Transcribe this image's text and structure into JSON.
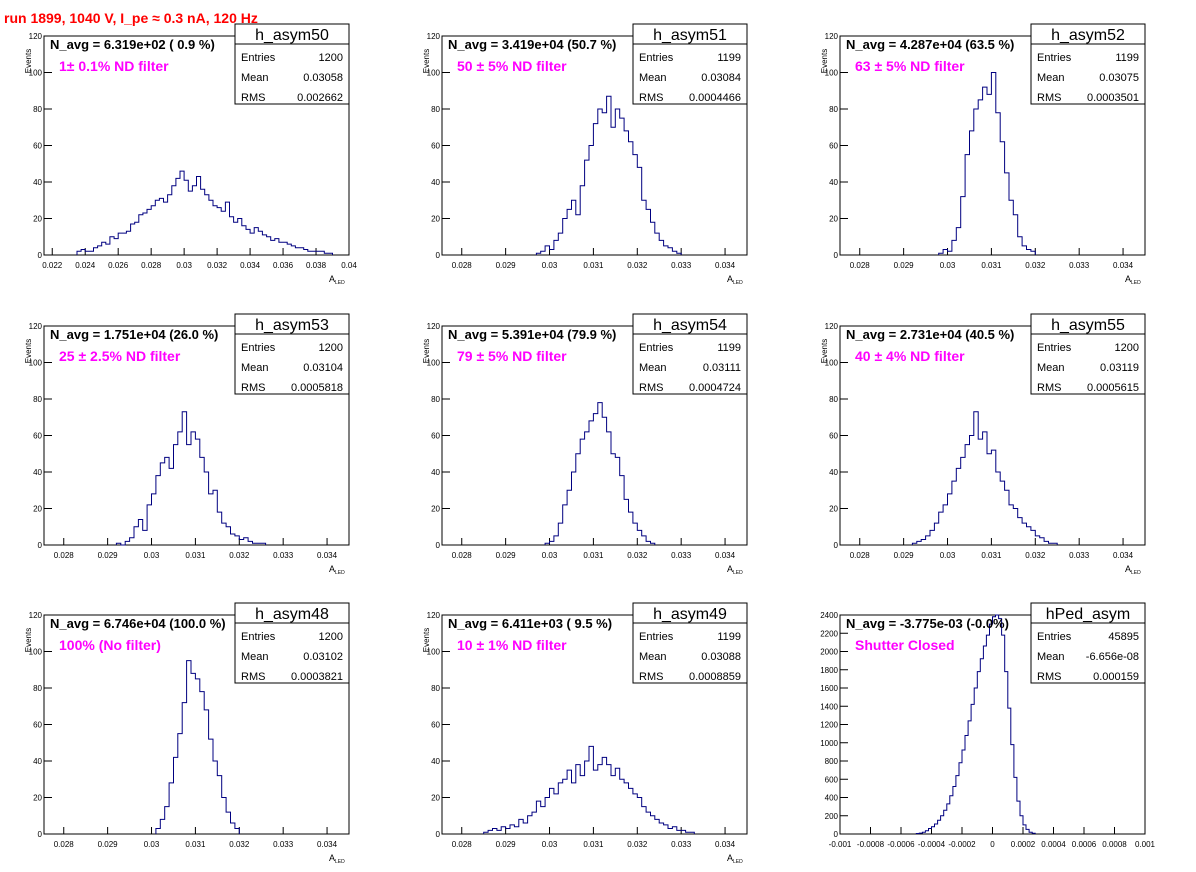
{
  "page_title": "run 1899,  1040 V, I_pe ≈ 0.3 nA, 120 Hz",
  "colors": {
    "title": "#ff0000",
    "note": "#ff00ff",
    "histogram": "#000080",
    "axis": "#000000"
  },
  "chart_data": [
    {
      "type": "histogram",
      "name": "h_asym50",
      "avg_label": "N_avg = 6.319e+02 ( 0.9 %)",
      "note": "1± 0.1% ND filter",
      "stats": [
        [
          "Entries",
          "1200"
        ],
        [
          "Mean",
          "0.03058"
        ],
        [
          "RMS",
          "0.002662"
        ]
      ],
      "xlabel": "A_LED",
      "ylabel": "Events",
      "xlim": [
        0.0215,
        0.04
      ],
      "ylim": [
        0,
        120
      ],
      "xticks": [
        0.022,
        0.024,
        0.026,
        0.028,
        0.03,
        0.032,
        0.034,
        0.036,
        0.038,
        0.04
      ],
      "xticklabels": [
        "0.022",
        "0.024",
        "0.026",
        "0.028",
        "0.03",
        "0.032",
        "0.034",
        "0.036",
        "0.038",
        "0.04"
      ],
      "yticks": [
        0,
        20,
        40,
        60,
        80,
        100,
        120
      ],
      "yticklabels": [
        "0",
        "20",
        "40",
        "60",
        "80",
        "100",
        "120"
      ],
      "x_start": 0.0235,
      "bin_width": 0.00025,
      "counts": [
        2,
        3,
        2,
        2,
        4,
        5,
        7,
        6,
        10,
        9,
        12,
        12,
        13,
        17,
        18,
        22,
        23,
        25,
        27,
        30,
        31,
        29,
        33,
        38,
        42,
        46,
        41,
        35,
        38,
        43,
        36,
        33,
        30,
        27,
        26,
        24,
        29,
        21,
        18,
        20,
        16,
        14,
        12,
        15,
        13,
        11,
        10,
        8,
        9,
        7,
        7,
        6,
        5,
        4,
        4,
        3,
        2,
        2,
        2,
        2,
        1,
        1
      ]
    },
    {
      "type": "histogram",
      "name": "h_asym51",
      "avg_label": "N_avg = 3.419e+04 (50.7 %)",
      "note": "50 ± 5% ND filter",
      "stats": [
        [
          "Entries",
          "1199"
        ],
        [
          "Mean",
          "0.03084"
        ],
        [
          "RMS",
          "0.0004466"
        ]
      ],
      "xlabel": "A_LED",
      "ylabel": "Events",
      "xlim": [
        0.02755,
        0.0345
      ],
      "ylim": [
        0,
        120
      ],
      "xticks": [
        0.028,
        0.029,
        0.03,
        0.031,
        0.032,
        0.033,
        0.034
      ],
      "xticklabels": [
        "0.028",
        "0.029",
        "0.03",
        "0.031",
        "0.032",
        "0.033",
        "0.034"
      ],
      "yticks": [
        0,
        20,
        40,
        60,
        80,
        100,
        120
      ],
      "yticklabels": [
        "0",
        "20",
        "40",
        "60",
        "80",
        "100",
        "120"
      ],
      "x_start": 0.0297,
      "bin_width": 0.0001,
      "counts": [
        1,
        2,
        5,
        3,
        8,
        12,
        20,
        25,
        30,
        22,
        38,
        52,
        60,
        72,
        80,
        78,
        87,
        70,
        80,
        75,
        68,
        62,
        55,
        48,
        30,
        25,
        18,
        12,
        8,
        5,
        4,
        2,
        1
      ]
    },
    {
      "type": "histogram",
      "name": "h_asym52",
      "avg_label": "N_avg = 4.287e+04 (63.5 %)",
      "note": "63 ± 5% ND filter",
      "stats": [
        [
          "Entries",
          "1199"
        ],
        [
          "Mean",
          "0.03075"
        ],
        [
          "RMS",
          "0.0003501"
        ]
      ],
      "xlabel": "A_LED",
      "ylabel": "Events",
      "xlim": [
        0.02755,
        0.0345
      ],
      "ylim": [
        0,
        120
      ],
      "xticks": [
        0.028,
        0.029,
        0.03,
        0.031,
        0.032,
        0.033,
        0.034
      ],
      "xticklabels": [
        "0.028",
        "0.029",
        "0.03",
        "0.031",
        "0.032",
        "0.033",
        "0.034"
      ],
      "yticks": [
        0,
        20,
        40,
        60,
        80,
        100,
        120
      ],
      "yticklabels": [
        "0",
        "20",
        "40",
        "60",
        "80",
        "100",
        "120"
      ],
      "x_start": 0.0298,
      "bin_width": 0.0001,
      "counts": [
        1,
        3,
        2,
        8,
        15,
        32,
        55,
        68,
        80,
        85,
        92,
        88,
        100,
        78,
        62,
        45,
        30,
        22,
        10,
        5,
        3,
        2
      ]
    },
    {
      "type": "histogram",
      "name": "h_asym53",
      "avg_label": "N_avg = 1.751e+04 (26.0 %)",
      "note": "25 ± 2.5% ND filter",
      "stats": [
        [
          "Entries",
          "1200"
        ],
        [
          "Mean",
          "0.03104"
        ],
        [
          "RMS",
          "0.0005818"
        ]
      ],
      "xlabel": "A_LED",
      "ylabel": "Events",
      "xlim": [
        0.02755,
        0.0345
      ],
      "ylim": [
        0,
        120
      ],
      "xticks": [
        0.028,
        0.029,
        0.03,
        0.031,
        0.032,
        0.033,
        0.034
      ],
      "xticklabels": [
        "0.028",
        "0.029",
        "0.03",
        "0.031",
        "0.032",
        "0.033",
        "0.034"
      ],
      "yticks": [
        0,
        20,
        40,
        60,
        80,
        100,
        120
      ],
      "yticklabels": [
        "0",
        "20",
        "40",
        "60",
        "80",
        "100",
        "120"
      ],
      "x_start": 0.0292,
      "bin_width": 0.0001,
      "counts": [
        1,
        0,
        2,
        4,
        10,
        14,
        8,
        22,
        28,
        38,
        45,
        48,
        42,
        55,
        62,
        73,
        55,
        62,
        58,
        48,
        40,
        28,
        30,
        18,
        12,
        10,
        6,
        5,
        3,
        4,
        2,
        1,
        1,
        1
      ]
    },
    {
      "type": "histogram",
      "name": "h_asym54",
      "avg_label": "N_avg = 5.391e+04 (79.9 %)",
      "note": "79 ± 5% ND filter",
      "stats": [
        [
          "Entries",
          "1199"
        ],
        [
          "Mean",
          "0.03111"
        ],
        [
          "RMS",
          "0.0004724"
        ]
      ],
      "xlabel": "A_LED",
      "ylabel": "Events",
      "xlim": [
        0.02755,
        0.0345
      ],
      "ylim": [
        0,
        120
      ],
      "xticks": [
        0.028,
        0.029,
        0.03,
        0.031,
        0.032,
        0.033,
        0.034
      ],
      "xticklabels": [
        "0.028",
        "0.029",
        "0.03",
        "0.031",
        "0.032",
        "0.033",
        "0.034"
      ],
      "yticks": [
        0,
        20,
        40,
        60,
        80,
        100,
        120
      ],
      "yticklabels": [
        "0",
        "20",
        "40",
        "60",
        "80",
        "100",
        "120"
      ],
      "x_start": 0.0299,
      "bin_width": 0.0001,
      "counts": [
        1,
        2,
        5,
        12,
        22,
        30,
        40,
        50,
        58,
        62,
        68,
        72,
        78,
        70,
        62,
        50,
        48,
        38,
        25,
        18,
        12,
        8,
        5,
        2,
        1
      ]
    },
    {
      "type": "histogram",
      "name": "h_asym55",
      "avg_label": "N_avg = 2.731e+04 (40.5 %)",
      "note": "40 ± 4% ND filter",
      "stats": [
        [
          "Entries",
          "1200"
        ],
        [
          "Mean",
          "0.03119"
        ],
        [
          "RMS",
          "0.0005615"
        ]
      ],
      "xlabel": "A_LED",
      "ylabel": "Events",
      "xlim": [
        0.02755,
        0.0345
      ],
      "ylim": [
        0,
        120
      ],
      "xticks": [
        0.028,
        0.029,
        0.03,
        0.031,
        0.032,
        0.033,
        0.034
      ],
      "xticklabels": [
        "0.028",
        "0.029",
        "0.03",
        "0.031",
        "0.032",
        "0.033",
        "0.034"
      ],
      "yticks": [
        0,
        20,
        40,
        60,
        80,
        100,
        120
      ],
      "yticklabels": [
        "0",
        "20",
        "40",
        "60",
        "80",
        "100",
        "120"
      ],
      "x_start": 0.0292,
      "bin_width": 0.0001,
      "counts": [
        1,
        2,
        3,
        5,
        8,
        12,
        18,
        22,
        28,
        35,
        42,
        48,
        55,
        60,
        73,
        58,
        62,
        50,
        52,
        40,
        35,
        30,
        22,
        20,
        15,
        12,
        10,
        8,
        5,
        4,
        2,
        1,
        1
      ]
    },
    {
      "type": "histogram",
      "name": "h_asym48",
      "avg_label": "N_avg = 6.746e+04 (100.0 %)",
      "note": "100% (No filter)",
      "stats": [
        [
          "Entries",
          "1200"
        ],
        [
          "Mean",
          "0.03102"
        ],
        [
          "RMS",
          "0.0003821"
        ]
      ],
      "xlabel": "A_LED",
      "ylabel": "Events",
      "xlim": [
        0.02755,
        0.0345
      ],
      "ylim": [
        0,
        120
      ],
      "xticks": [
        0.028,
        0.029,
        0.03,
        0.031,
        0.032,
        0.033,
        0.034
      ],
      "xticklabels": [
        "0.028",
        "0.029",
        "0.03",
        "0.031",
        "0.032",
        "0.033",
        "0.034"
      ],
      "yticks": [
        0,
        20,
        40,
        60,
        80,
        100,
        120
      ],
      "yticklabels": [
        "0",
        "20",
        "40",
        "60",
        "80",
        "100",
        "120"
      ],
      "x_start": 0.0301,
      "bin_width": 0.0001,
      "counts": [
        3,
        8,
        15,
        28,
        42,
        55,
        72,
        95,
        88,
        85,
        78,
        68,
        52,
        40,
        32,
        20,
        12,
        6,
        3
      ]
    },
    {
      "type": "histogram",
      "name": "h_asym49",
      "avg_label": "N_avg = 6.411e+03 ( 9.5 %)",
      "note": "10 ± 1% ND filter",
      "stats": [
        [
          "Entries",
          "1199"
        ],
        [
          "Mean",
          "0.03088"
        ],
        [
          "RMS",
          "0.0008859"
        ]
      ],
      "xlabel": "A_LED",
      "ylabel": "Events",
      "xlim": [
        0.02755,
        0.0345
      ],
      "ylim": [
        0,
        120
      ],
      "xticks": [
        0.028,
        0.029,
        0.03,
        0.031,
        0.032,
        0.033,
        0.034
      ],
      "xticklabels": [
        "0.028",
        "0.029",
        "0.03",
        "0.031",
        "0.032",
        "0.033",
        "0.034"
      ],
      "yticks": [
        0,
        20,
        40,
        60,
        80,
        100,
        120
      ],
      "yticklabels": [
        "0",
        "20",
        "40",
        "60",
        "80",
        "100",
        "120"
      ],
      "x_start": 0.0285,
      "bin_width": 0.0001,
      "counts": [
        1,
        2,
        3,
        2,
        4,
        3,
        5,
        4,
        8,
        6,
        10,
        12,
        18,
        15,
        20,
        25,
        22,
        28,
        30,
        35,
        28,
        38,
        32,
        40,
        48,
        35,
        38,
        42,
        38,
        32,
        36,
        30,
        28,
        25,
        22,
        20,
        15,
        12,
        10,
        8,
        6,
        5,
        3,
        4,
        2,
        2,
        1,
        1
      ]
    },
    {
      "type": "histogram",
      "name": "hPed_asym",
      "avg_label": "N_avg = -3.775e-03 (-0.0%)",
      "note": "Shutter Closed",
      "stats": [
        [
          "Entries",
          "45895"
        ],
        [
          "Mean",
          "-6.656e-08"
        ],
        [
          "RMS",
          "0.000159"
        ]
      ],
      "xlabel": "",
      "ylabel": "",
      "xlim": [
        -0.001,
        0.001
      ],
      "ylim": [
        0,
        2400
      ],
      "xticks": [
        -0.001,
        -0.0008,
        -0.0006,
        -0.0004,
        -0.0002,
        0,
        0.0002,
        0.0004,
        0.0006,
        0.0008,
        0.001
      ],
      "xticklabels": [
        "-0.001",
        "-0.0008",
        "-0.0006",
        "-0.0004",
        "-0.0002",
        "0",
        "0.0002",
        "0.0004",
        "0.0006",
        "0.0008",
        "0.001"
      ],
      "yticks": [
        0,
        200,
        400,
        600,
        800,
        1000,
        1200,
        1400,
        1600,
        1800,
        2000,
        2200,
        2400
      ],
      "yticklabels": [
        "0",
        "200",
        "400",
        "600",
        "800",
        "1000",
        "1200",
        "1400",
        "1600",
        "1800",
        "2000",
        "2200",
        "2400"
      ],
      "x_start": -0.0005,
      "bin_width": 2e-05,
      "counts": [
        5,
        10,
        20,
        35,
        60,
        80,
        110,
        150,
        200,
        260,
        330,
        420,
        520,
        640,
        780,
        920,
        1080,
        1240,
        1420,
        1600,
        1780,
        1920,
        2060,
        2180,
        2300,
        2380,
        2400,
        2360,
        2180,
        1780,
        1380,
        980,
        620,
        360,
        200,
        100,
        50,
        20,
        8
      ]
    }
  ]
}
